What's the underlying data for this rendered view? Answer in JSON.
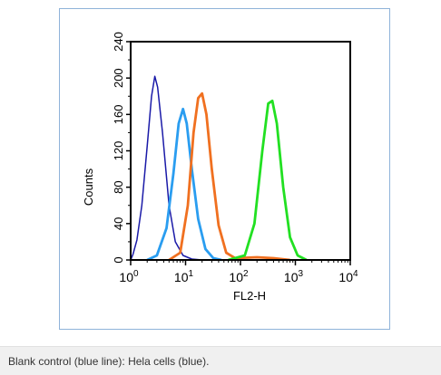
{
  "caption": "Blank control (blue line): Hela cells (blue).",
  "chart_data": {
    "type": "line",
    "title": "",
    "xlabel": "FL2-H",
    "ylabel": "Counts",
    "x_scale": "log",
    "xlim": [
      1,
      10000
    ],
    "ylim": [
      0,
      240
    ],
    "x_ticks": [
      {
        "value": 1,
        "base": "10",
        "exp": "0"
      },
      {
        "value": 10,
        "base": "10",
        "exp": "1"
      },
      {
        "value": 100,
        "base": "10",
        "exp": "2"
      },
      {
        "value": 1000,
        "base": "10",
        "exp": "3"
      },
      {
        "value": 10000,
        "base": "10",
        "exp": "4"
      }
    ],
    "y_ticks": [
      0,
      40,
      80,
      120,
      160,
      200,
      240
    ],
    "grid": false,
    "legend": "none",
    "series": [
      {
        "color": "#1a1aa8",
        "points": [
          [
            1.0,
            0
          ],
          [
            1.1,
            6
          ],
          [
            1.3,
            22
          ],
          [
            1.6,
            60
          ],
          [
            2.0,
            125
          ],
          [
            2.4,
            180
          ],
          [
            2.75,
            202
          ],
          [
            3.1,
            190
          ],
          [
            3.8,
            140
          ],
          [
            5.0,
            60
          ],
          [
            6.5,
            20
          ],
          [
            9.0,
            5
          ],
          [
            13.0,
            1
          ],
          [
            20.0,
            0
          ]
        ]
      },
      {
        "color": "#2a9df0",
        "points": [
          [
            2.0,
            0
          ],
          [
            3.0,
            5
          ],
          [
            4.5,
            35
          ],
          [
            6.0,
            95
          ],
          [
            7.5,
            150
          ],
          [
            9.0,
            166
          ],
          [
            10.5,
            150
          ],
          [
            13.0,
            100
          ],
          [
            17.0,
            45
          ],
          [
            23.0,
            12
          ],
          [
            32.0,
            2
          ],
          [
            45.0,
            0
          ]
        ]
      },
      {
        "color": "#f07020",
        "points": [
          [
            5.0,
            0
          ],
          [
            8.0,
            8
          ],
          [
            11.0,
            60
          ],
          [
            14.0,
            140
          ],
          [
            17.0,
            178
          ],
          [
            20.0,
            183
          ],
          [
            24.0,
            160
          ],
          [
            30.0,
            100
          ],
          [
            40.0,
            38
          ],
          [
            55.0,
            8
          ],
          [
            80.0,
            2
          ],
          [
            200.0,
            3
          ],
          [
            400.0,
            2
          ],
          [
            800.0,
            0
          ]
        ]
      },
      {
        "color": "#22e022",
        "points": [
          [
            60.0,
            0
          ],
          [
            120.0,
            5
          ],
          [
            180.0,
            40
          ],
          [
            250.0,
            120
          ],
          [
            320.0,
            172
          ],
          [
            380.0,
            175
          ],
          [
            460.0,
            150
          ],
          [
            600.0,
            80
          ],
          [
            800.0,
            25
          ],
          [
            1100.0,
            5
          ],
          [
            1600.0,
            0
          ]
        ]
      }
    ]
  }
}
